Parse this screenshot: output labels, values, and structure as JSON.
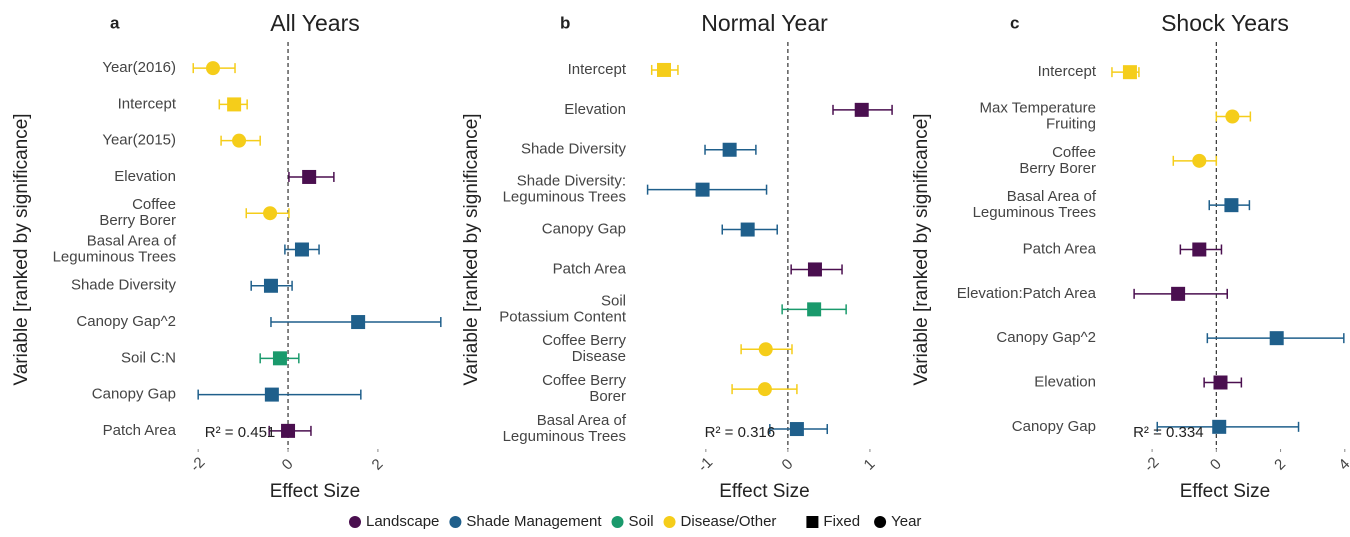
{
  "chart_data": [
    {
      "type": "forest",
      "panel": "a",
      "title": "All Years",
      "x_label": "Effect Size",
      "y_label": "Variable [ranked by significance]",
      "annotation": "R² = 0.451",
      "categories": [
        [
          "Year(2016)"
        ],
        [
          "Intercept"
        ],
        [
          "Year(2015)"
        ],
        [
          "Elevation"
        ],
        [
          "Coffee",
          "Berry Borer"
        ],
        [
          "Basal Area of",
          "Leguminous Trees"
        ],
        [
          "Shade Diversity"
        ],
        [
          "Canopy Gap^2"
        ],
        [
          "Soil C:N"
        ],
        [
          "Canopy Gap"
        ],
        [
          "Patch Area"
        ]
      ],
      "values": [
        -1.67,
        -1.2,
        -1.09,
        0.47,
        -0.4,
        0.31,
        -0.38,
        1.56,
        -0.18,
        -0.36,
        0.0
      ],
      "lower": [
        -2.11,
        -1.53,
        -1.49,
        0.02,
        -0.93,
        -0.07,
        -0.82,
        -0.38,
        -0.62,
        -2.0,
        -0.42
      ],
      "upper": [
        -1.18,
        -0.91,
        -0.62,
        1.02,
        0.02,
        0.69,
        0.09,
        3.4,
        0.24,
        1.62,
        0.51
      ],
      "groups": [
        "Disease/Other",
        "Disease/Other",
        "Disease/Other",
        "Landscape",
        "Disease/Other",
        "Shade Management",
        "Shade Management",
        "Shade Management",
        "Soil",
        "Shade Management",
        "Landscape"
      ],
      "markers": [
        "Year",
        "Fixed",
        "Year",
        "Fixed",
        "Year",
        "Fixed",
        "Fixed",
        "Fixed",
        "Fixed",
        "Fixed",
        "Fixed"
      ],
      "xlim": [
        -2.36,
        3.56
      ],
      "xticks": [
        -2,
        0,
        2
      ]
    },
    {
      "type": "forest",
      "panel": "b",
      "title": "Normal Year",
      "x_label": "Effect Size",
      "y_label": "Variable [ranked by significance]",
      "annotation": "R² = 0.316",
      "categories": [
        [
          "Intercept"
        ],
        [
          "Elevation"
        ],
        [
          "Shade Diversity"
        ],
        [
          "Shade Diversity:",
          "Leguminous Trees"
        ],
        [
          "Canopy Gap"
        ],
        [
          "Patch Area"
        ],
        [
          "Soil",
          "Potassium Content"
        ],
        [
          "Coffee Berry",
          "Disease"
        ],
        [
          "Coffee Berry",
          "Borer"
        ],
        [
          "Basal Area of",
          "Leguminous Trees"
        ]
      ],
      "values": [
        -1.51,
        0.9,
        -0.71,
        -1.04,
        -0.49,
        0.33,
        0.32,
        -0.27,
        -0.28,
        0.11
      ],
      "lower": [
        -1.66,
        0.55,
        -1.01,
        -1.71,
        -0.8,
        0.04,
        -0.07,
        -0.57,
        -0.68,
        -0.22
      ],
      "upper": [
        -1.34,
        1.27,
        -0.39,
        -0.26,
        -0.13,
        0.66,
        0.71,
        0.05,
        0.11,
        0.48
      ],
      "groups": [
        "Disease/Other",
        "Landscape",
        "Shade Management",
        "Shade Management",
        "Shade Management",
        "Landscape",
        "Soil",
        "Disease/Other",
        "Disease/Other",
        "Shade Management"
      ],
      "markers": [
        "Fixed",
        "Fixed",
        "Fixed",
        "Fixed",
        "Fixed",
        "Fixed",
        "Fixed",
        "Year",
        "Year",
        "Fixed"
      ],
      "xlim": [
        -1.9,
        1.33
      ],
      "xticks": [
        -1,
        0,
        1
      ]
    },
    {
      "type": "forest",
      "panel": "c",
      "title": "Shock Years",
      "x_label": "Effect Size",
      "y_label": "Variable [ranked by significance]",
      "annotation": "R² = 0.334",
      "categories": [
        [
          "Intercept"
        ],
        [
          "Max Temperature",
          "Fruiting"
        ],
        [
          "Coffee",
          "Berry Borer"
        ],
        [
          "Basal Area of",
          "Leguminous Trees"
        ],
        [
          "Patch Area"
        ],
        [
          "Elevation:Patch Area"
        ],
        [
          "Canopy Gap^2"
        ],
        [
          "Elevation"
        ],
        [
          "Canopy Gap"
        ]
      ],
      "values": [
        -2.69,
        0.5,
        -0.53,
        0.47,
        -0.53,
        -1.19,
        1.88,
        0.13,
        0.09
      ],
      "lower": [
        -3.25,
        0,
        -1.34,
        -0.22,
        -1.12,
        -2.56,
        -0.28,
        -0.38,
        -1.84
      ],
      "upper": [
        -2.41,
        1.06,
        0,
        1.03,
        0.16,
        0.34,
        3.97,
        0.78,
        2.56
      ],
      "groups": [
        "Disease/Other",
        "Disease/Other",
        "Disease/Other",
        "Shade Management",
        "Landscape",
        "Landscape",
        "Shade Management",
        "Landscape",
        "Shade Management"
      ],
      "markers": [
        "Fixed",
        "Year",
        "Year",
        "Fixed",
        "Fixed",
        "Fixed",
        "Fixed",
        "Fixed",
        "Fixed"
      ],
      "xlim": [
        -3.56,
        4.1
      ],
      "xticks": [
        -2,
        0,
        2,
        4
      ]
    }
  ],
  "legend": {
    "groups": [
      {
        "name": "Landscape",
        "color": "#4a0f4f"
      },
      {
        "name": "Shade Management",
        "color": "#1f5f8b"
      },
      {
        "name": "Soil",
        "color": "#1a9a6c"
      },
      {
        "name": "Disease/Other",
        "color": "#f5cd1a"
      }
    ],
    "shapes": [
      {
        "name": "Fixed",
        "marker": "square"
      },
      {
        "name": "Year",
        "marker": "circle"
      }
    ]
  }
}
